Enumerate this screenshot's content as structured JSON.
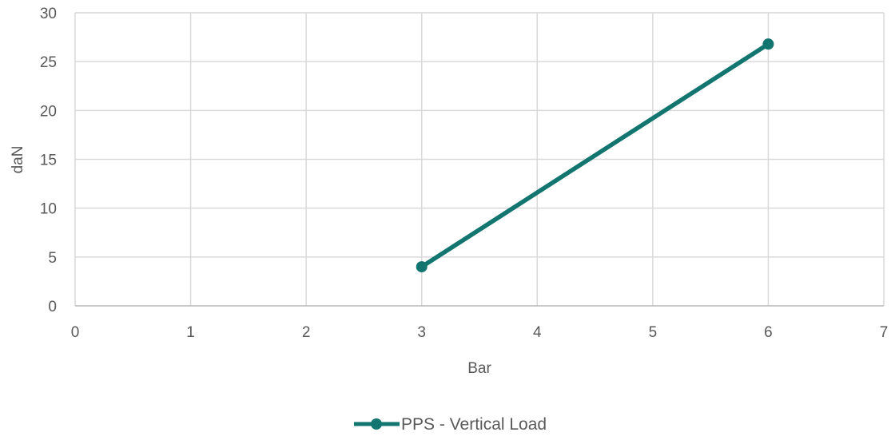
{
  "chart_data": {
    "type": "scatter",
    "title": "",
    "xlabel": "Bar",
    "ylabel": "daN",
    "xlim": [
      0,
      7
    ],
    "ylim": [
      0,
      30
    ],
    "xticks": [
      0,
      1,
      2,
      3,
      4,
      5,
      6,
      7
    ],
    "yticks": [
      0,
      5,
      10,
      15,
      20,
      25,
      30
    ],
    "grid": true,
    "legend_position": "bottom",
    "series": [
      {
        "name": "PPS - Vertical Load",
        "color": "#127570",
        "markers": true,
        "lines": true,
        "points": [
          {
            "x": 3,
            "y": 4
          },
          {
            "x": 6,
            "y": 26.8
          }
        ]
      }
    ]
  }
}
